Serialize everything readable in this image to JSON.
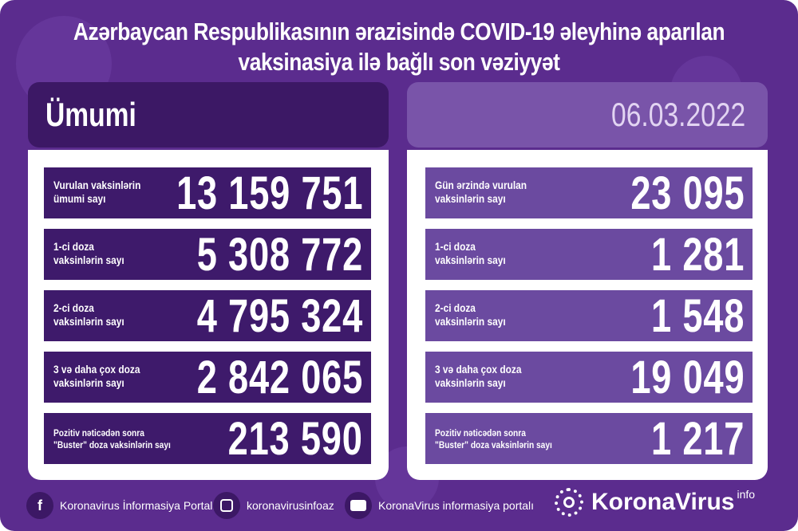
{
  "title": {
    "line1": "Azərbaycan Respublikasının ərazisində COVID-19 əleyhinə aparılan",
    "line2": "vaksinasiya ilə bağlı son vəziyyət"
  },
  "left": {
    "header": "Ümumi",
    "rows": [
      {
        "label1": "Vurulan vaksinlərin",
        "label2": "ümumi sayı",
        "value": "13 159 751"
      },
      {
        "label1": "1-ci doza",
        "label2": "vaksinlərin sayı",
        "value": "5 308 772"
      },
      {
        "label1": "2-ci doza",
        "label2": "vaksinlərin sayı",
        "value": "4 795 324"
      },
      {
        "label1": "3 və daha çox doza",
        "label2": "vaksinlərin sayı",
        "value": "2 842 065"
      },
      {
        "label1": "Pozitiv nəticədən sonra",
        "label2": "\"Buster\" doza vaksinlərin sayı",
        "value": "213 590"
      }
    ]
  },
  "right": {
    "header": "06.03.2022",
    "rows": [
      {
        "label1": "Gün ərzində vurulan",
        "label2": "vaksinlərin sayı",
        "value": "23 095"
      },
      {
        "label1": "1-ci doza",
        "label2": "vaksinlərin sayı",
        "value": "1 281"
      },
      {
        "label1": "2-ci doza",
        "label2": "vaksinlərin sayı",
        "value": "1 548"
      },
      {
        "label1": "3 və daha çox doza",
        "label2": "vaksinlərin sayı",
        "value": "19 049"
      },
      {
        "label1": "Pozitiv nəticədən sonra",
        "label2": "\"Buster\" doza vaksinlərin sayı",
        "value": "1 217"
      }
    ]
  },
  "footer": {
    "facebook": {
      "icon": "facebook-icon",
      "label": "Koronavirus İnformasiya Portalı"
    },
    "instagram": {
      "icon": "instagram-icon",
      "label": "koronavirusinfoaz"
    },
    "youtube": {
      "icon": "youtube-icon",
      "label": "KoronaVirus informasiya portalı"
    },
    "logo": {
      "main": "KoronaVirus",
      "sup": "info"
    }
  },
  "colors": {
    "background": "#5b2c8e",
    "left_rows": "#3e1a6b",
    "right_rows": "#6b4aa0",
    "date_header": "#7954a9"
  }
}
